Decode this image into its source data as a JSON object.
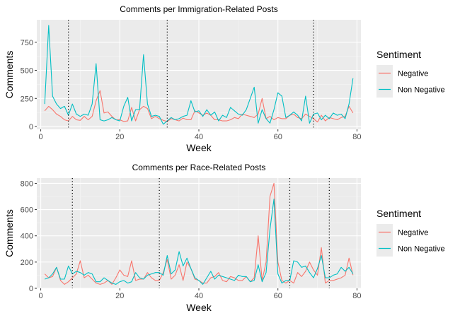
{
  "chart_data": [
    {
      "type": "line",
      "title": "Comments per Immigration-Related Posts",
      "xlabel": "Week",
      "ylabel": "Comments",
      "xlim": [
        -1,
        81
      ],
      "ylim": [
        -25,
        950
      ],
      "xticks": [
        0,
        20,
        40,
        60,
        80
      ],
      "yticks": [
        0,
        250,
        500,
        750
      ],
      "vlines": [
        7,
        32,
        69
      ],
      "legend": {
        "title": "Sentiment",
        "position": "right"
      },
      "x": [
        1,
        2,
        3,
        4,
        5,
        6,
        7,
        8,
        9,
        10,
        11,
        12,
        13,
        14,
        15,
        16,
        17,
        18,
        19,
        20,
        21,
        22,
        23,
        24,
        25,
        26,
        27,
        28,
        29,
        30,
        31,
        32,
        33,
        34,
        35,
        36,
        37,
        38,
        39,
        40,
        41,
        42,
        43,
        44,
        45,
        46,
        47,
        48,
        49,
        50,
        51,
        52,
        53,
        54,
        55,
        56,
        57,
        58,
        59,
        60,
        61,
        62,
        63,
        64,
        65,
        66,
        67,
        68,
        69,
        70,
        71,
        72,
        73,
        74,
        75,
        76,
        77,
        78,
        79
      ],
      "series": [
        {
          "name": "Negative",
          "color": "#F8766D",
          "values": [
            140,
            180,
            150,
            110,
            90,
            60,
            50,
            90,
            60,
            55,
            90,
            60,
            90,
            230,
            320,
            120,
            130,
            90,
            60,
            60,
            45,
            50,
            170,
            50,
            150,
            180,
            160,
            70,
            90,
            70,
            55,
            45,
            70,
            60,
            50,
            75,
            60,
            60,
            140,
            120,
            100,
            120,
            100,
            60,
            60,
            50,
            50,
            60,
            80,
            70,
            110,
            100,
            90,
            80,
            110,
            250,
            70,
            90,
            60,
            80,
            70,
            70,
            100,
            110,
            80,
            70,
            110,
            90,
            70,
            40,
            100,
            50,
            80,
            70,
            60,
            80,
            90,
            180,
            120
          ]
        },
        {
          "name": "Non Negative",
          "color": "#00BFC4",
          "values": [
            200,
            900,
            270,
            200,
            160,
            180,
            100,
            200,
            110,
            90,
            110,
            100,
            200,
            560,
            60,
            50,
            60,
            80,
            60,
            50,
            180,
            260,
            50,
            150,
            150,
            640,
            200,
            90,
            100,
            90,
            20,
            50,
            80,
            60,
            70,
            90,
            100,
            230,
            130,
            140,
            90,
            150,
            100,
            130,
            50,
            100,
            80,
            170,
            140,
            110,
            100,
            150,
            250,
            350,
            30,
            150,
            70,
            30,
            150,
            300,
            270,
            80,
            100,
            130,
            100,
            50,
            270,
            30,
            110,
            120,
            60,
            100,
            70,
            120,
            100,
            110,
            70,
            200,
            430
          ]
        }
      ]
    },
    {
      "type": "line",
      "title": "Comments per Race-Related Posts",
      "xlabel": "Week",
      "ylabel": "Comments",
      "xlim": [
        -1,
        81
      ],
      "ylim": [
        0,
        840
      ],
      "xticks": [
        0,
        20,
        40,
        60,
        80
      ],
      "yticks": [
        0,
        200,
        400,
        600,
        800
      ],
      "vlines": [
        8,
        30,
        63,
        73
      ],
      "legend": {
        "title": "Sentiment",
        "position": "right"
      },
      "x": [
        1,
        2,
        3,
        4,
        5,
        6,
        7,
        8,
        9,
        10,
        11,
        12,
        13,
        14,
        15,
        16,
        17,
        18,
        19,
        20,
        21,
        22,
        23,
        24,
        25,
        26,
        27,
        28,
        29,
        30,
        31,
        32,
        33,
        34,
        35,
        36,
        37,
        38,
        39,
        40,
        41,
        42,
        43,
        44,
        45,
        46,
        47,
        48,
        49,
        50,
        51,
        52,
        53,
        54,
        55,
        56,
        57,
        58,
        59,
        60,
        61,
        62,
        63,
        64,
        65,
        66,
        67,
        68,
        69,
        70,
        71,
        72,
        73,
        74,
        75,
        76,
        77,
        78,
        79
      ],
      "series": [
        {
          "name": "Negative",
          "color": "#F8766D",
          "values": [
            110,
            80,
            90,
            160,
            60,
            30,
            50,
            80,
            110,
            210,
            80,
            100,
            70,
            40,
            30,
            40,
            60,
            30,
            80,
            140,
            100,
            90,
            210,
            60,
            70,
            70,
            120,
            80,
            60,
            60,
            120,
            220,
            70,
            100,
            180,
            60,
            200,
            150,
            70,
            60,
            40,
            40,
            80,
            90,
            120,
            60,
            50,
            90,
            80,
            60,
            60,
            90,
            50,
            80,
            400,
            60,
            200,
            700,
            800,
            200,
            60,
            40,
            60,
            40,
            120,
            90,
            130,
            200,
            140,
            100,
            310,
            40,
            60,
            60,
            70,
            80,
            100,
            230,
            100
          ]
        },
        {
          "name": "Non Negative",
          "color": "#00BFC4",
          "values": [
            70,
            80,
            110,
            160,
            70,
            70,
            170,
            110,
            130,
            120,
            100,
            120,
            110,
            50,
            50,
            80,
            60,
            40,
            30,
            50,
            60,
            40,
            50,
            120,
            80,
            70,
            100,
            110,
            120,
            120,
            100,
            250,
            110,
            140,
            280,
            170,
            230,
            150,
            80,
            60,
            30,
            80,
            130,
            70,
            100,
            90,
            80,
            70,
            60,
            100,
            90,
            90,
            50,
            60,
            180,
            50,
            120,
            450,
            680,
            110,
            40,
            60,
            60,
            210,
            200,
            160,
            170,
            120,
            80,
            150,
            250,
            80,
            80,
            100,
            110,
            160,
            130,
            160,
            110
          ]
        }
      ]
    }
  ]
}
